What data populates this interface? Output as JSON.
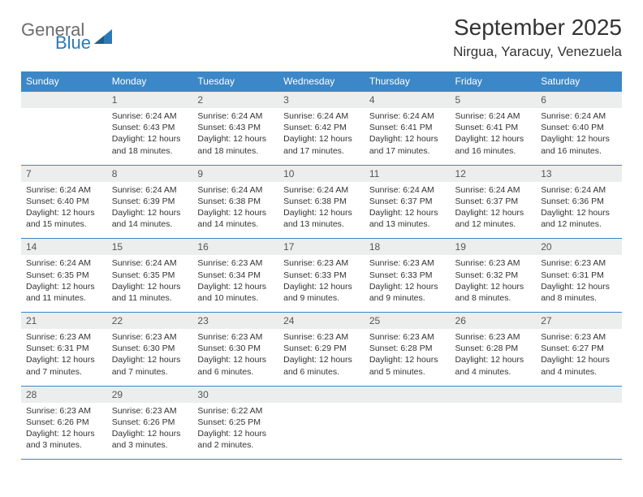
{
  "logo": {
    "word1": "General",
    "word2": "Blue",
    "color1": "#6d6d6d",
    "color2": "#2a7ab9"
  },
  "title": "September 2025",
  "location": "Nirgua, Yaracuy, Venezuela",
  "colors": {
    "header_bg": "#3c87c7",
    "header_text": "#ffffff",
    "daynum_bg": "#eceded",
    "daynum_text": "#555555",
    "border": "#3c87c7",
    "body_text": "#333333",
    "page_bg": "#ffffff"
  },
  "days_of_week": [
    "Sunday",
    "Monday",
    "Tuesday",
    "Wednesday",
    "Thursday",
    "Friday",
    "Saturday"
  ],
  "weeks": [
    [
      null,
      {
        "n": "1",
        "sunrise": "6:24 AM",
        "sunset": "6:43 PM",
        "daylight": "12 hours and 18 minutes."
      },
      {
        "n": "2",
        "sunrise": "6:24 AM",
        "sunset": "6:43 PM",
        "daylight": "12 hours and 18 minutes."
      },
      {
        "n": "3",
        "sunrise": "6:24 AM",
        "sunset": "6:42 PM",
        "daylight": "12 hours and 17 minutes."
      },
      {
        "n": "4",
        "sunrise": "6:24 AM",
        "sunset": "6:41 PM",
        "daylight": "12 hours and 17 minutes."
      },
      {
        "n": "5",
        "sunrise": "6:24 AM",
        "sunset": "6:41 PM",
        "daylight": "12 hours and 16 minutes."
      },
      {
        "n": "6",
        "sunrise": "6:24 AM",
        "sunset": "6:40 PM",
        "daylight": "12 hours and 16 minutes."
      }
    ],
    [
      {
        "n": "7",
        "sunrise": "6:24 AM",
        "sunset": "6:40 PM",
        "daylight": "12 hours and 15 minutes."
      },
      {
        "n": "8",
        "sunrise": "6:24 AM",
        "sunset": "6:39 PM",
        "daylight": "12 hours and 14 minutes."
      },
      {
        "n": "9",
        "sunrise": "6:24 AM",
        "sunset": "6:38 PM",
        "daylight": "12 hours and 14 minutes."
      },
      {
        "n": "10",
        "sunrise": "6:24 AM",
        "sunset": "6:38 PM",
        "daylight": "12 hours and 13 minutes."
      },
      {
        "n": "11",
        "sunrise": "6:24 AM",
        "sunset": "6:37 PM",
        "daylight": "12 hours and 13 minutes."
      },
      {
        "n": "12",
        "sunrise": "6:24 AM",
        "sunset": "6:37 PM",
        "daylight": "12 hours and 12 minutes."
      },
      {
        "n": "13",
        "sunrise": "6:24 AM",
        "sunset": "6:36 PM",
        "daylight": "12 hours and 12 minutes."
      }
    ],
    [
      {
        "n": "14",
        "sunrise": "6:24 AM",
        "sunset": "6:35 PM",
        "daylight": "12 hours and 11 minutes."
      },
      {
        "n": "15",
        "sunrise": "6:24 AM",
        "sunset": "6:35 PM",
        "daylight": "12 hours and 11 minutes."
      },
      {
        "n": "16",
        "sunrise": "6:23 AM",
        "sunset": "6:34 PM",
        "daylight": "12 hours and 10 minutes."
      },
      {
        "n": "17",
        "sunrise": "6:23 AM",
        "sunset": "6:33 PM",
        "daylight": "12 hours and 9 minutes."
      },
      {
        "n": "18",
        "sunrise": "6:23 AM",
        "sunset": "6:33 PM",
        "daylight": "12 hours and 9 minutes."
      },
      {
        "n": "19",
        "sunrise": "6:23 AM",
        "sunset": "6:32 PM",
        "daylight": "12 hours and 8 minutes."
      },
      {
        "n": "20",
        "sunrise": "6:23 AM",
        "sunset": "6:31 PM",
        "daylight": "12 hours and 8 minutes."
      }
    ],
    [
      {
        "n": "21",
        "sunrise": "6:23 AM",
        "sunset": "6:31 PM",
        "daylight": "12 hours and 7 minutes."
      },
      {
        "n": "22",
        "sunrise": "6:23 AM",
        "sunset": "6:30 PM",
        "daylight": "12 hours and 7 minutes."
      },
      {
        "n": "23",
        "sunrise": "6:23 AM",
        "sunset": "6:30 PM",
        "daylight": "12 hours and 6 minutes."
      },
      {
        "n": "24",
        "sunrise": "6:23 AM",
        "sunset": "6:29 PM",
        "daylight": "12 hours and 6 minutes."
      },
      {
        "n": "25",
        "sunrise": "6:23 AM",
        "sunset": "6:28 PM",
        "daylight": "12 hours and 5 minutes."
      },
      {
        "n": "26",
        "sunrise": "6:23 AM",
        "sunset": "6:28 PM",
        "daylight": "12 hours and 4 minutes."
      },
      {
        "n": "27",
        "sunrise": "6:23 AM",
        "sunset": "6:27 PM",
        "daylight": "12 hours and 4 minutes."
      }
    ],
    [
      {
        "n": "28",
        "sunrise": "6:23 AM",
        "sunset": "6:26 PM",
        "daylight": "12 hours and 3 minutes."
      },
      {
        "n": "29",
        "sunrise": "6:23 AM",
        "sunset": "6:26 PM",
        "daylight": "12 hours and 3 minutes."
      },
      {
        "n": "30",
        "sunrise": "6:22 AM",
        "sunset": "6:25 PM",
        "daylight": "12 hours and 2 minutes."
      },
      null,
      null,
      null,
      null
    ]
  ],
  "labels": {
    "sunrise": "Sunrise:",
    "sunset": "Sunset:",
    "daylight": "Daylight:"
  }
}
